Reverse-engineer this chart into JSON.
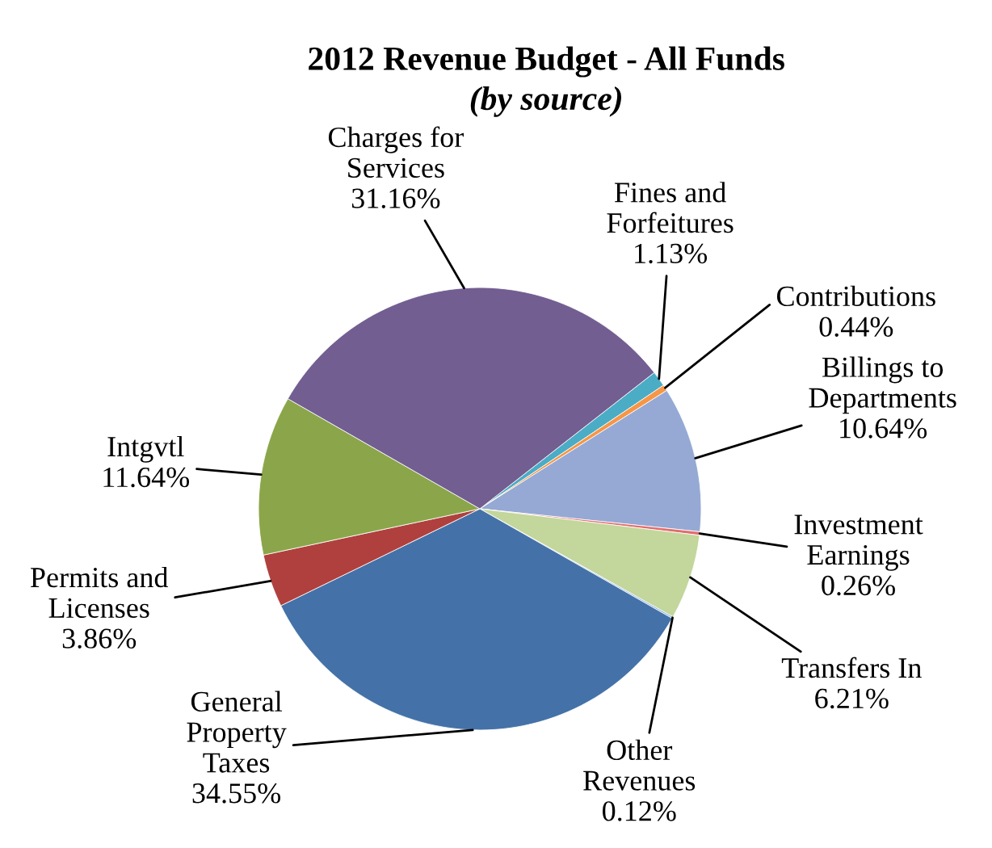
{
  "chart_data": {
    "type": "pie",
    "title": "2012 Revenue Budget - All Funds",
    "subtitle": "(by source)",
    "categories": [
      "Fines and Forfeitures",
      "Contributions",
      "Billings to Departments",
      "Investment Earnings",
      "Transfers In",
      "Other Revenues",
      "General Property Taxes",
      "Permits and Licenses",
      "Intgvtl",
      "Charges for Services"
    ],
    "values": [
      1.13,
      0.44,
      10.64,
      0.26,
      6.21,
      0.12,
      34.55,
      3.86,
      11.64,
      31.16
    ],
    "colors": [
      "#4bacc6",
      "#f79646",
      "#95a9d4",
      "#e46c6c",
      "#c3d69b",
      "#8eb4e3",
      "#4472a8",
      "#b0403e",
      "#8ba64a",
      "#725e91"
    ],
    "value_labels": [
      "1.13%",
      "0.44%",
      "10.64%",
      "0.26%",
      "6.21%",
      "0.12%",
      "34.55%",
      "3.86%",
      "11.64%",
      "31.16%"
    ],
    "legend": false
  }
}
